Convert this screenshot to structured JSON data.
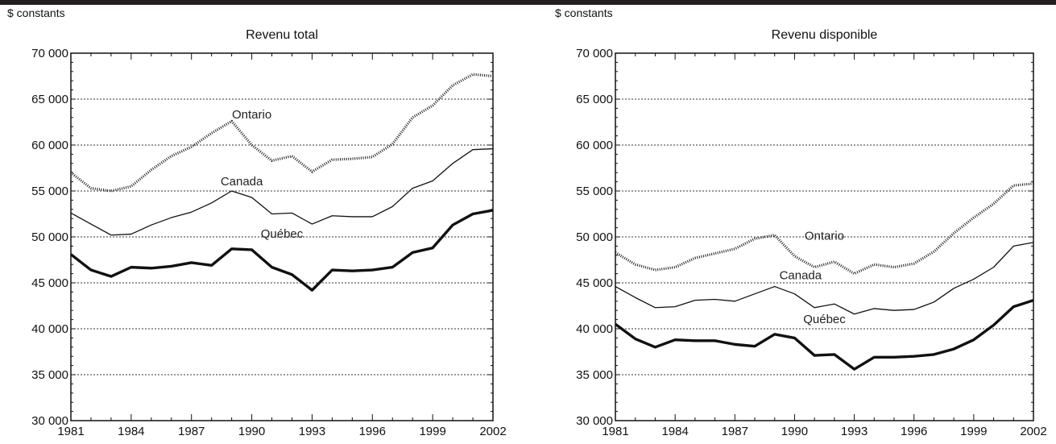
{
  "chart_data": [
    {
      "type": "line",
      "title": "Revenu total",
      "ylabel": "$ constants",
      "xlabel": "",
      "ylim": [
        30000,
        70000
      ],
      "xlim": [
        1981,
        2002
      ],
      "yticks": [
        30000,
        35000,
        40000,
        45000,
        50000,
        55000,
        60000,
        65000,
        70000
      ],
      "ytick_labels": [
        "30 000",
        "35 000",
        "40 000",
        "45 000",
        "50 000",
        "55 000",
        "60 000",
        "65 000",
        "70 000"
      ],
      "xtick_labels": [
        "1981",
        "1984",
        "1987",
        "1990",
        "1993",
        "1996",
        "1999",
        "2002"
      ],
      "grid": "horizontal dotted",
      "x": [
        1981,
        1982,
        1983,
        1984,
        1985,
        1986,
        1987,
        1988,
        1989,
        1990,
        1991,
        1992,
        1993,
        1994,
        1995,
        1996,
        1997,
        1998,
        1999,
        2000,
        2001,
        2002
      ],
      "series": [
        {
          "name": "Ontario",
          "style": "dotted",
          "values": [
            57000,
            55300,
            55000,
            55500,
            57300,
            58800,
            59800,
            61300,
            62600,
            60000,
            58300,
            58800,
            57100,
            58400,
            58500,
            58700,
            60100,
            63000,
            64300,
            66500,
            67700,
            67500
          ]
        },
        {
          "name": "Canada",
          "style": "thin",
          "values": [
            52600,
            51400,
            50200,
            50300,
            51300,
            52100,
            52700,
            53700,
            55000,
            54300,
            52500,
            52600,
            51400,
            52300,
            52200,
            52200,
            53300,
            55300,
            56100,
            58000,
            59500,
            59600
          ]
        },
        {
          "name": "Québec",
          "style": "thick",
          "values": [
            48100,
            46400,
            45700,
            46700,
            46600,
            46800,
            47200,
            46900,
            48700,
            48600,
            46700,
            45900,
            44200,
            46400,
            46300,
            46400,
            46700,
            48300,
            48800,
            51300,
            52500,
            52900
          ]
        }
      ],
      "annotations": [
        "Ontario",
        "Canada",
        "Québec"
      ]
    },
    {
      "type": "line",
      "title": "Revenu disponible",
      "ylabel": "$ constants",
      "xlabel": "",
      "ylim": [
        30000,
        70000
      ],
      "xlim": [
        1981,
        2002
      ],
      "yticks": [
        30000,
        35000,
        40000,
        45000,
        50000,
        55000,
        60000,
        65000,
        70000
      ],
      "ytick_labels": [
        "30 000",
        "35 000",
        "40 000",
        "45 000",
        "50 000",
        "55 000",
        "60 000",
        "65 000",
        "70 000"
      ],
      "xtick_labels": [
        "1981",
        "1984",
        "1987",
        "1990",
        "1993",
        "1996",
        "1999",
        "2002"
      ],
      "grid": "horizontal dotted",
      "x": [
        1981,
        1982,
        1983,
        1984,
        1985,
        1986,
        1987,
        1988,
        1989,
        1990,
        1991,
        1992,
        1993,
        1994,
        1995,
        1996,
        1997,
        1998,
        1999,
        2000,
        2001,
        2002
      ],
      "series": [
        {
          "name": "Ontario",
          "style": "dotted",
          "values": [
            48300,
            47000,
            46400,
            46700,
            47700,
            48200,
            48700,
            49800,
            50200,
            47900,
            46700,
            47300,
            46000,
            47000,
            46700,
            47100,
            48400,
            50400,
            52100,
            53600,
            55600,
            55800
          ]
        },
        {
          "name": "Canada",
          "style": "thin",
          "values": [
            44600,
            43400,
            42300,
            42400,
            43100,
            43200,
            43000,
            43800,
            44600,
            43800,
            42300,
            42700,
            41600,
            42200,
            42000,
            42100,
            42900,
            44400,
            45400,
            46700,
            49000,
            49400
          ]
        },
        {
          "name": "Québec",
          "style": "thick",
          "values": [
            40500,
            38900,
            38000,
            38800,
            38700,
            38700,
            38300,
            38100,
            39400,
            39000,
            37100,
            37200,
            35600,
            36900,
            36900,
            37000,
            37200,
            37800,
            38800,
            40400,
            42400,
            43100
          ]
        }
      ],
      "annotations": [
        "Ontario",
        "Canada",
        "Québec"
      ]
    }
  ]
}
